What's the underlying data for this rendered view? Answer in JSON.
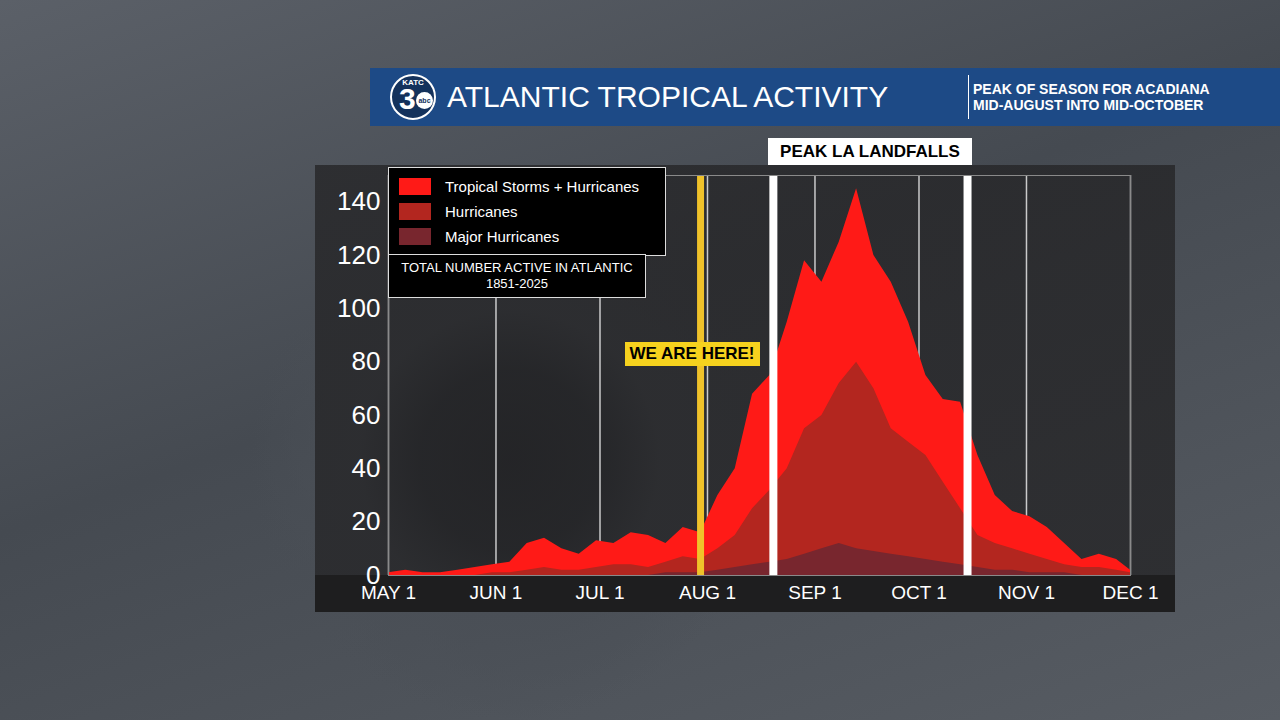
{
  "header": {
    "logo": {
      "station": "KATC",
      "channel": "3",
      "network": "abc"
    },
    "title": "ATLANTIC TROPICAL ACTIVITY",
    "subtitle": [
      "PEAK OF SEASON FOR ACADIANA",
      "MID-AUGUST INTO MID-OCTOBER"
    ]
  },
  "chart_data": {
    "type": "area",
    "stacked": false,
    "grid": true,
    "legend": "top-left",
    "note": [
      "TOTAL NUMBER ACTIVE IN ATLANTIC",
      "1851-2025"
    ],
    "x": [
      0,
      5,
      10,
      15,
      20,
      25,
      30,
      35,
      40,
      45,
      50,
      55,
      60,
      65,
      70,
      75,
      80,
      85,
      90,
      95,
      100,
      105,
      110,
      115,
      120,
      125,
      130,
      135,
      140,
      145,
      150,
      155,
      160,
      165,
      170,
      175,
      180,
      185,
      190,
      195,
      200,
      205,
      210,
      214
    ],
    "series": [
      {
        "name": "Tropical Storms + Hurricanes",
        "color": "#ff1a17",
        "values": [
          1,
          2,
          1,
          1,
          2,
          3,
          4,
          5,
          12,
          14,
          10,
          8,
          13,
          12,
          16,
          15,
          12,
          18,
          16,
          30,
          40,
          68,
          75,
          95,
          118,
          110,
          125,
          145,
          120,
          110,
          95,
          75,
          66,
          65,
          45,
          30,
          24,
          22,
          18,
          12,
          6,
          8,
          6,
          2
        ]
      },
      {
        "name": "Hurricanes",
        "color": "#b3261f",
        "values": [
          0,
          0,
          0,
          0,
          0,
          0,
          1,
          1,
          2,
          3,
          2,
          2,
          3,
          4,
          4,
          3,
          5,
          7,
          6,
          10,
          15,
          25,
          32,
          40,
          55,
          60,
          72,
          80,
          70,
          55,
          50,
          45,
          35,
          25,
          15,
          12,
          10,
          8,
          6,
          4,
          3,
          3,
          2,
          1
        ]
      },
      {
        "name": "Major Hurricanes",
        "color": "#78262e",
        "values": [
          0,
          0,
          0,
          0,
          0,
          0,
          0,
          0,
          0,
          0,
          0,
          0,
          0,
          0,
          0,
          0,
          1,
          1,
          1,
          2,
          3,
          4,
          5,
          6,
          8,
          10,
          12,
          10,
          9,
          8,
          7,
          6,
          5,
          4,
          3,
          2,
          2,
          1,
          1,
          1,
          0,
          0,
          0,
          0
        ]
      }
    ],
    "xlim": [
      0,
      214
    ],
    "xticks": [
      {
        "value": 0,
        "label": "MAY 1"
      },
      {
        "value": 31,
        "label": "JUN 1"
      },
      {
        "value": 61,
        "label": "JUL 1"
      },
      {
        "value": 92,
        "label": "AUG 1"
      },
      {
        "value": 123,
        "label": "SEP 1"
      },
      {
        "value": 153,
        "label": "OCT 1"
      },
      {
        "value": 184,
        "label": "NOV 1"
      },
      {
        "value": 214,
        "label": "DEC 1"
      }
    ],
    "ylim": [
      0,
      150
    ],
    "yticks": [
      0,
      20,
      40,
      60,
      80,
      100,
      120,
      140
    ],
    "annotations": [
      {
        "kind": "marker",
        "x": 90,
        "label": "WE ARE HERE!"
      },
      {
        "kind": "window",
        "x": [
          111,
          167
        ],
        "label": "PEAK LA LANDFALLS"
      }
    ]
  }
}
